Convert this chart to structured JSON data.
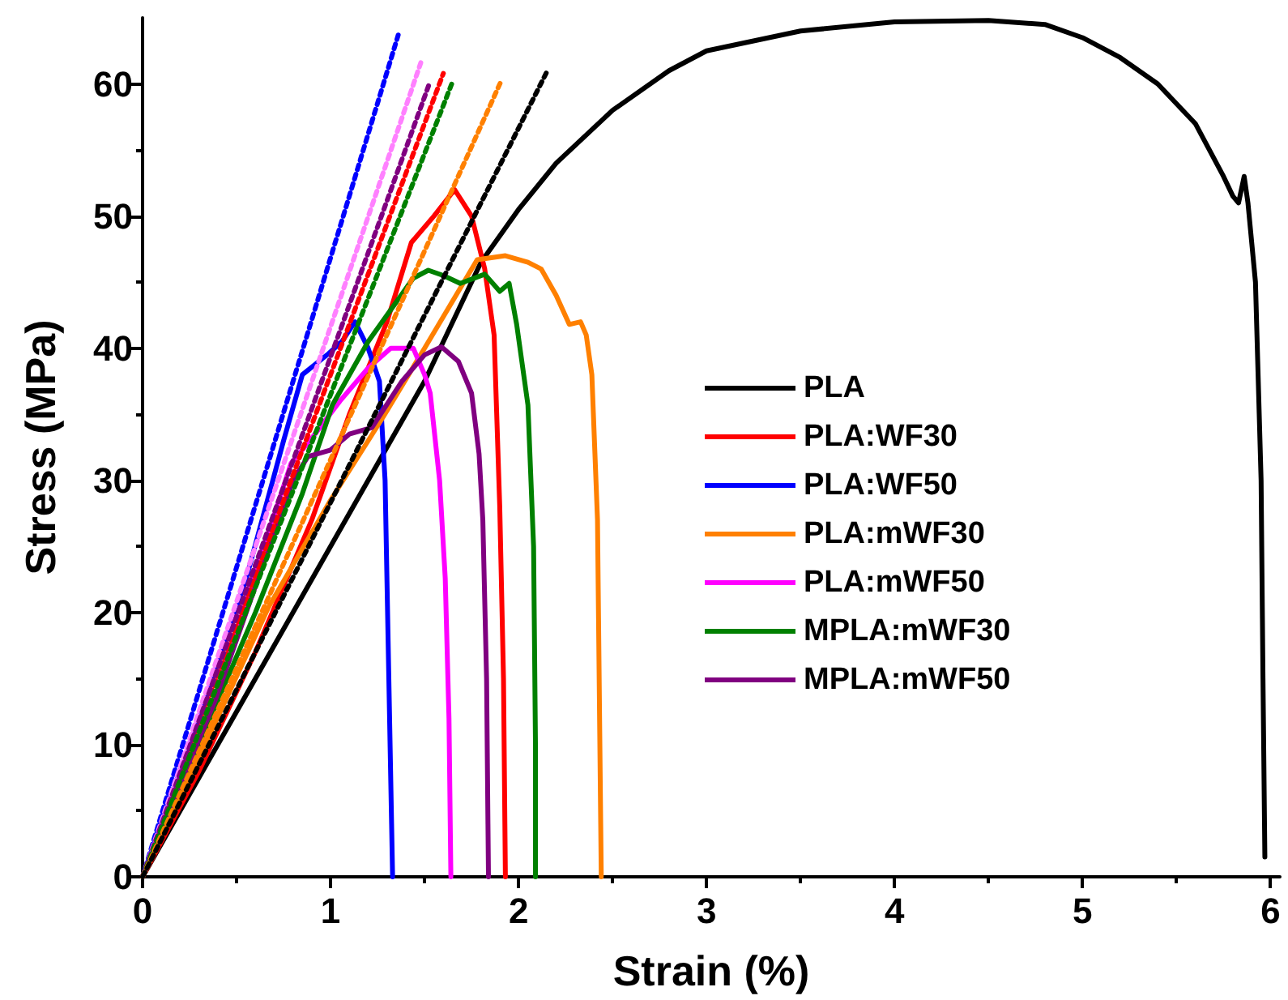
{
  "chart_data": {
    "type": "line",
    "xlabel": "Strain (%)",
    "ylabel": "Stress (MPa)",
    "xlim": [
      0,
      6.05
    ],
    "xticks": [
      0,
      1,
      2,
      3,
      4,
      5,
      6
    ],
    "ylim": [
      0,
      65
    ],
    "yticks": [
      0,
      10,
      20,
      30,
      40,
      50,
      60
    ],
    "grid": false,
    "legend": "right",
    "marker": "none",
    "line_style": "solid",
    "series": [
      {
        "name": "PLA",
        "color": "#000000",
        "x": [
          0,
          0.5,
          1,
          1.5,
          1.8,
          2,
          2.2,
          2.5,
          2.8,
          3,
          3.5,
          4,
          4.5,
          4.8,
          5,
          5.2,
          5.4,
          5.6,
          5.75,
          5.8,
          5.83,
          5.86,
          5.88,
          5.92,
          5.95,
          5.96,
          5.97
        ],
        "values": [
          0,
          12.5,
          25,
          37.5,
          46.5,
          50.5,
          54,
          58,
          61,
          62.5,
          64,
          64.7,
          64.8,
          64.5,
          63.5,
          62,
          60,
          57,
          53,
          51.5,
          51,
          53,
          51,
          45,
          30,
          15,
          1.5
        ]
      },
      {
        "name": "PLA:WF30",
        "color": "#ff0000",
        "x": [
          0,
          0.3,
          0.6,
          0.9,
          1.1,
          1.3,
          1.43,
          1.55,
          1.66,
          1.75,
          1.82,
          1.87,
          1.9,
          1.92,
          1.93
        ],
        "values": [
          0,
          8,
          17,
          27,
          35,
          42,
          48,
          50,
          52,
          50,
          46,
          41,
          28,
          15,
          0
        ]
      },
      {
        "name": "PLA:WF50",
        "color": "#0000ff",
        "x": [
          0,
          0.3,
          0.55,
          0.75,
          0.85,
          0.99,
          1.06,
          1.13,
          1.2,
          1.26,
          1.29,
          1.31,
          1.33
        ],
        "values": [
          0,
          12,
          22.5,
          33,
          38,
          39.6,
          40.5,
          42,
          40,
          37.5,
          30,
          15,
          0
        ]
      },
      {
        "name": "PLA:mWF30",
        "color": "#ff8000",
        "x": [
          0,
          0.3,
          0.67,
          1,
          1.28,
          1.5,
          1.78,
          1.93,
          2.05,
          2.12,
          2.2,
          2.27,
          2.33,
          2.36,
          2.39,
          2.42,
          2.44
        ],
        "values": [
          0,
          9,
          20.4,
          28.5,
          34.8,
          40,
          46.7,
          47,
          46.5,
          46,
          44,
          41.8,
          42,
          41,
          38,
          27,
          0
        ]
      },
      {
        "name": "PLA:mWF50",
        "color": "#ff00ff",
        "x": [
          0,
          0.39,
          0.6,
          0.79,
          0.89,
          1.05,
          1.2,
          1.32,
          1.44,
          1.5,
          1.53,
          1.58,
          1.61,
          1.63,
          1.64
        ],
        "values": [
          0,
          13.8,
          23,
          31.3,
          33,
          36,
          38.5,
          40,
          40,
          38,
          36.6,
          30,
          22.6,
          12,
          0
        ]
      },
      {
        "name": "MPLA:mWF30",
        "color": "#008000",
        "x": [
          0,
          0.3,
          0.6,
          0.85,
          1.01,
          1.2,
          1.44,
          1.52,
          1.6,
          1.69,
          1.82,
          1.9,
          1.95,
          1.99,
          2.05,
          2.08,
          2.09,
          2.09
        ],
        "values": [
          0,
          10,
          20,
          29,
          35.7,
          40.5,
          45.3,
          45.9,
          45.5,
          44.9,
          45.6,
          44.3,
          44.9,
          41.8,
          35.7,
          25,
          10,
          0
        ]
      },
      {
        "name": "MPLA:mWF50",
        "color": "#800080",
        "x": [
          0,
          0.39,
          0.7,
          0.8,
          0.88,
          1,
          1.1,
          1.22,
          1.38,
          1.5,
          1.59,
          1.68,
          1.75,
          1.79,
          1.81,
          1.83,
          1.84
        ],
        "values": [
          0,
          13.5,
          26,
          30,
          31.8,
          32.3,
          33.5,
          34,
          37.5,
          39.5,
          40.1,
          39,
          36.6,
          32,
          27,
          15,
          0
        ]
      },
      {
        "color": "#0000ff",
        "line_style": "dotted",
        "x": [
          0,
          1.36
        ],
        "values": [
          0,
          63.7
        ]
      },
      {
        "color": "#ff80ff",
        "line_style": "dotted",
        "x": [
          0,
          1.48
        ],
        "values": [
          0,
          61.6
        ]
      },
      {
        "color": "#ff0000",
        "line_style": "dotted",
        "x": [
          0,
          1.6
        ],
        "values": [
          0,
          60.8
        ]
      },
      {
        "color": "#800080",
        "line_style": "dotted",
        "x": [
          0,
          1.53
        ],
        "values": [
          0,
          60.2
        ]
      },
      {
        "color": "#008000",
        "line_style": "dotted",
        "x": [
          0,
          1.65
        ],
        "values": [
          0,
          60.2
        ]
      },
      {
        "color": "#ff8000",
        "line_style": "dotted",
        "x": [
          0,
          1.91
        ],
        "values": [
          0,
          60.3
        ]
      },
      {
        "color": "#000000",
        "line_style": "dotted",
        "x": [
          0,
          2.15
        ],
        "values": [
          0,
          60.9
        ]
      }
    ]
  }
}
